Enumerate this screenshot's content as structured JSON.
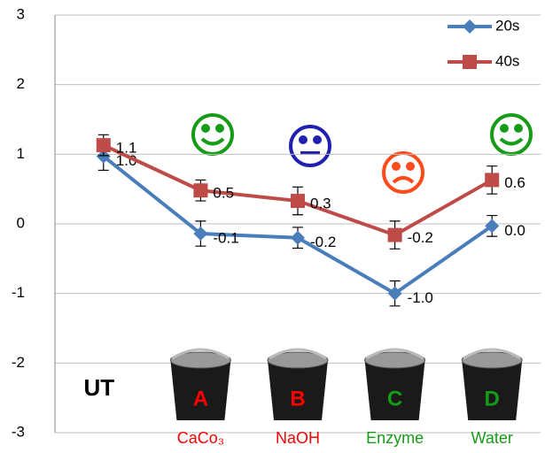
{
  "chart_data": {
    "type": "line",
    "categories": [
      "UT",
      "CaCo₃",
      "NaOH",
      "Enzyme",
      "Water"
    ],
    "category_colors": [
      "#000000",
      "#ff0000",
      "#ff0000",
      "#169c16",
      "#169c16"
    ],
    "bucket_labels": [
      "A",
      "B",
      "C",
      "D"
    ],
    "bucket_label_colors": [
      "#ff0000",
      "#ff0000",
      "#169c16",
      "#169c16"
    ],
    "series": [
      {
        "name": "20s",
        "color": "#4a7ebb",
        "marker": "diamond",
        "values": [
          0.97,
          -0.14,
          -0.2,
          -1.0,
          -0.03
        ],
        "value_labels": [
          "1.0",
          "-0.1",
          "-0.2",
          "-1.0",
          "0.0"
        ],
        "errors": [
          0.2,
          0.18,
          0.15,
          0.18,
          0.15
        ]
      },
      {
        "name": "40s",
        "color": "#be4b48",
        "marker": "square",
        "values": [
          1.13,
          0.48,
          0.33,
          -0.16,
          0.63
        ],
        "value_labels": [
          "1.1",
          "0.5",
          "0.3",
          "-0.2",
          "0.6"
        ],
        "errors": [
          0.15,
          0.15,
          0.2,
          0.2,
          0.2
        ]
      }
    ],
    "ylim": [
      -3,
      3
    ],
    "yticks": [
      -3,
      -2,
      -1,
      0,
      1,
      2,
      3
    ],
    "grid": true,
    "legend": "top right"
  }
}
